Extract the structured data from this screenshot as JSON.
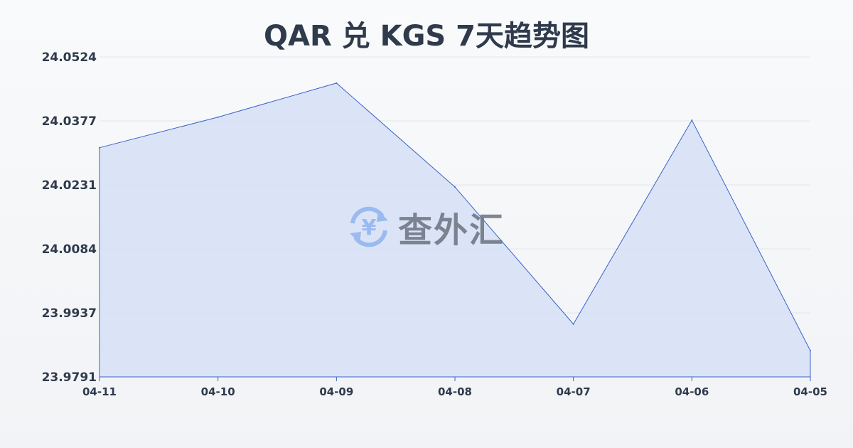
{
  "chart_data": {
    "type": "area",
    "title": "QAR 兑 KGS 7天趋势图",
    "categories": [
      "04-11",
      "04-10",
      "04-09",
      "04-08",
      "04-07",
      "04-06",
      "04-05"
    ],
    "values": [
      24.0316,
      24.0386,
      24.0464,
      24.0226,
      23.9912,
      24.0379,
      23.9851
    ],
    "yticks": [
      "24.0524",
      "24.0377",
      "24.0231",
      "24.0084",
      "23.9937",
      "23.9791"
    ],
    "ylim": [
      23.9791,
      24.0524
    ],
    "grid": true,
    "line_color": "#3a62c8",
    "fill_color": "#d6e1f6"
  },
  "watermark": {
    "text": "查外汇",
    "icon": "yen-exchange-icon"
  }
}
